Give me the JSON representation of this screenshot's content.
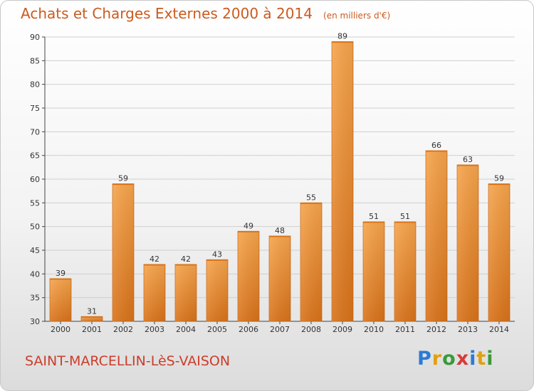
{
  "title": "Achats et Charges Externes 2000 à 2014",
  "unit_note": "(en milliers d'€)",
  "commune": "SAINT-MARCELLIN-LèS-VAISON",
  "brand": {
    "letters": [
      "P",
      "r",
      "o",
      "x",
      "i",
      "t",
      "i"
    ],
    "colors": [
      "#2b7bd6",
      "#e0a010",
      "#3a9a3a",
      "#d83a3a",
      "#2b7bd6",
      "#e0a010",
      "#3a9a3a"
    ]
  },
  "colors": {
    "bar": "#f28d2c",
    "title": "#cc5a1e",
    "commune": "#cc3d2a"
  },
  "chart_data": {
    "type": "bar",
    "categories": [
      "2000",
      "2001",
      "2002",
      "2003",
      "2004",
      "2005",
      "2006",
      "2007",
      "2008",
      "2009",
      "2010",
      "2011",
      "2012",
      "2013",
      "2014"
    ],
    "values": [
      39,
      31,
      59,
      42,
      42,
      43,
      49,
      48,
      55,
      89,
      51,
      51,
      66,
      63,
      59
    ],
    "title": "Achats et Charges Externes 2000 à 2014",
    "ylim": [
      30,
      90
    ],
    "yticks": [
      30,
      35,
      40,
      45,
      50,
      55,
      60,
      65,
      70,
      75,
      80,
      85,
      90
    ],
    "grid": true,
    "data_labels": true
  }
}
